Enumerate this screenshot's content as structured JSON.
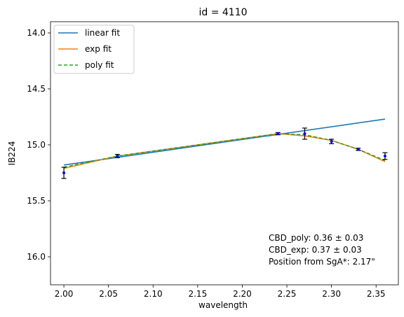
{
  "chart_data": {
    "type": "line",
    "title": "id = 4110",
    "xlabel": "wavelength",
    "ylabel": "IB224",
    "xlim": [
      1.985,
      2.375
    ],
    "ylim": [
      16.25,
      13.9
    ],
    "y_inverted": true,
    "grid": false,
    "legend_position": "top-left",
    "x_ticks": [
      2.0,
      2.05,
      2.1,
      2.15,
      2.2,
      2.25,
      2.3,
      2.35
    ],
    "x_tick_labels": [
      "2.00",
      "2.05",
      "2.10",
      "2.15",
      "2.20",
      "2.25",
      "2.30",
      "2.35"
    ],
    "y_ticks": [
      14.0,
      14.5,
      15.0,
      15.5,
      16.0
    ],
    "y_tick_labels": [
      "14.0",
      "14.5",
      "15.0",
      "15.5",
      "16.0"
    ],
    "series": [
      {
        "name": "linear fit",
        "color": "#1f77b4",
        "style": "solid",
        "x": [
          2.0,
          2.36
        ],
        "y": [
          15.18,
          14.77
        ]
      },
      {
        "name": "exp fit",
        "color": "#ff7f0e",
        "style": "solid",
        "x": [
          2.0,
          2.06,
          2.24,
          2.27,
          2.3,
          2.33,
          2.36
        ],
        "y": [
          15.21,
          15.1,
          14.9,
          14.92,
          14.96,
          15.04,
          15.15
        ]
      },
      {
        "name": "poly fit",
        "color": "#2ca02c",
        "style": "dashed",
        "x": [
          2.0,
          2.06,
          2.24,
          2.27,
          2.3,
          2.33,
          2.36
        ],
        "y": [
          15.2,
          15.1,
          14.9,
          14.91,
          14.96,
          15.04,
          15.14
        ]
      }
    ],
    "data_points": {
      "color": "#0000ff",
      "errorbar_color": "#000000",
      "x": [
        2.0,
        2.06,
        2.24,
        2.27,
        2.3,
        2.33,
        2.36
      ],
      "y": [
        15.25,
        15.1,
        14.9,
        14.9,
        14.97,
        15.04,
        15.1
      ],
      "yerr": [
        0.05,
        0.015,
        0.01,
        0.05,
        0.02,
        0.01,
        0.03
      ]
    },
    "annotations": [
      "CBD_poly: 0.36 ± 0.03",
      "CBD_exp: 0.37 ± 0.03",
      "Position from SgA*: 2.17\""
    ]
  }
}
